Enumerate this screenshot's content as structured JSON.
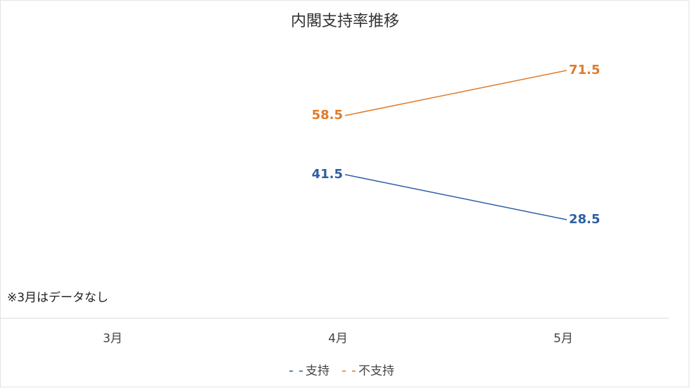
{
  "chart_data": {
    "type": "line",
    "title": "内閣支持率推移",
    "categories": [
      "3月",
      "4月",
      "5月"
    ],
    "series": [
      {
        "name": "支持",
        "color": "#2e5fa6",
        "values": [
          null,
          41.5,
          28.5
        ]
      },
      {
        "name": "不支持",
        "color": "#e07b2a",
        "values": [
          null,
          58.5,
          71.5
        ]
      }
    ],
    "annotation": "※3月はデータなし",
    "legend": "bottom"
  }
}
